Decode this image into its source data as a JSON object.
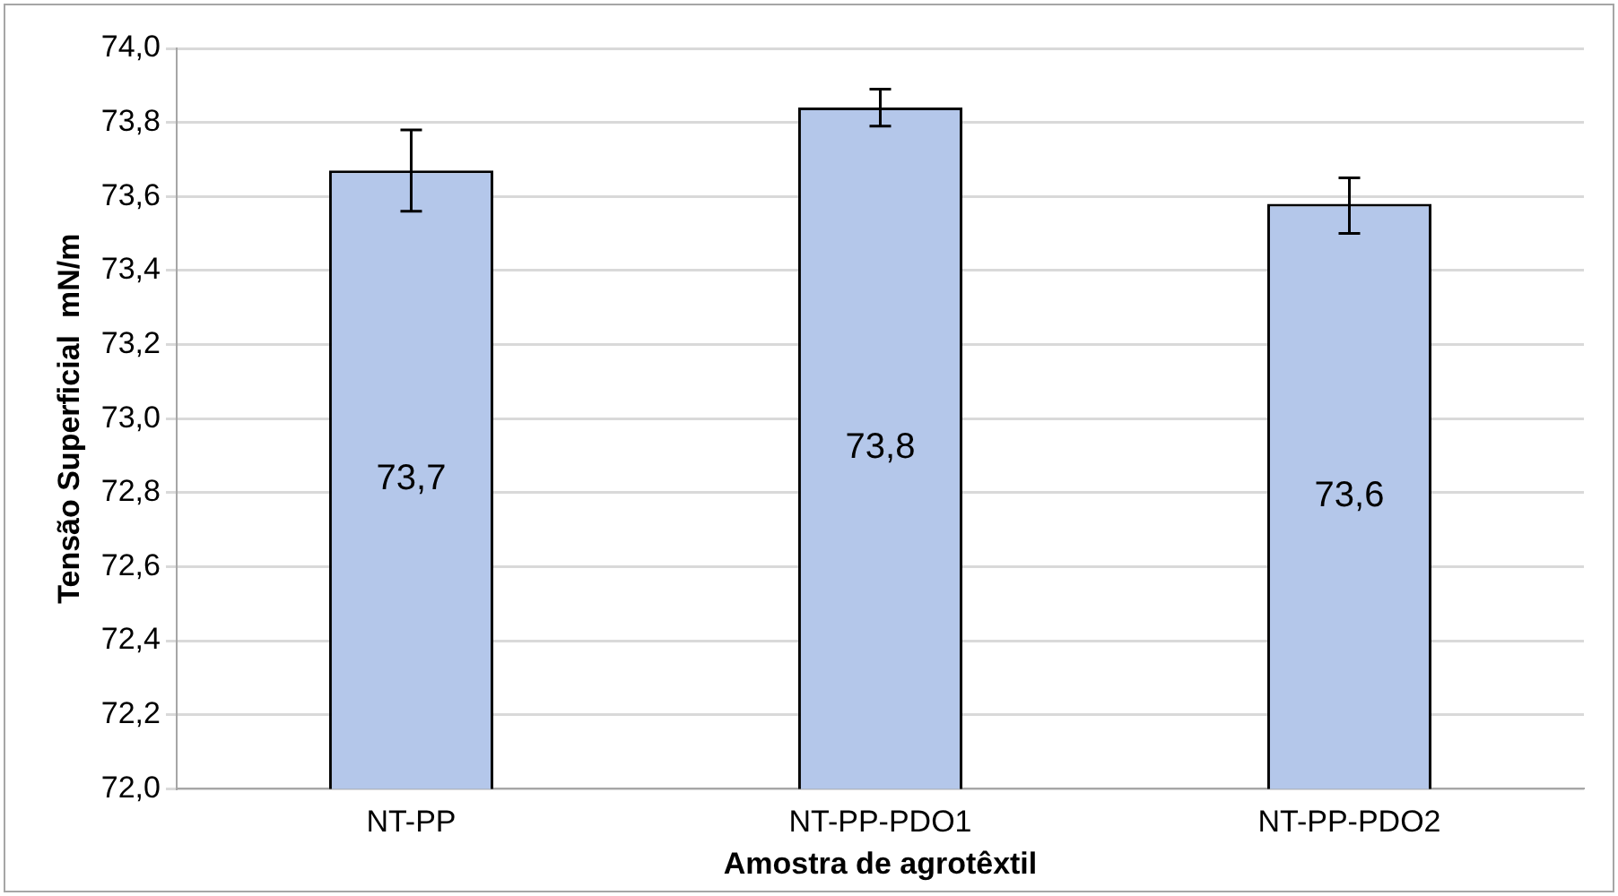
{
  "chart_data": {
    "type": "bar",
    "xlabel": "Amostra de agrotêxtil",
    "ylabel": "Tensão Superficial  mN/m",
    "categories": [
      "NT-PP",
      "NT-PP-PDO1",
      "NT-PP-PDO2"
    ],
    "values": [
      73.67,
      73.84,
      73.58
    ],
    "errors": [
      [
        73.56,
        73.78
      ],
      [
        73.79,
        73.89
      ],
      [
        73.5,
        73.65
      ]
    ],
    "value_labels": [
      "73,7",
      "73,8",
      "73,6"
    ],
    "color": "#b4c7ea",
    "ylim": [
      72.0,
      74.0
    ],
    "yticks": [
      {
        "value": 72.0,
        "label": "72,0"
      },
      {
        "value": 72.2,
        "label": "72,2"
      },
      {
        "value": 72.4,
        "label": "72,4"
      },
      {
        "value": 72.6,
        "label": "72,6"
      },
      {
        "value": 72.8,
        "label": "72,8"
      },
      {
        "value": 73.0,
        "label": "73,0"
      },
      {
        "value": 73.2,
        "label": "73,2"
      },
      {
        "value": 73.4,
        "label": "73,4"
      },
      {
        "value": 73.6,
        "label": "73,6"
      },
      {
        "value": 73.8,
        "label": "73,8"
      },
      {
        "value": 74.0,
        "label": "74,0"
      }
    ],
    "grid": "y",
    "legend": false
  }
}
